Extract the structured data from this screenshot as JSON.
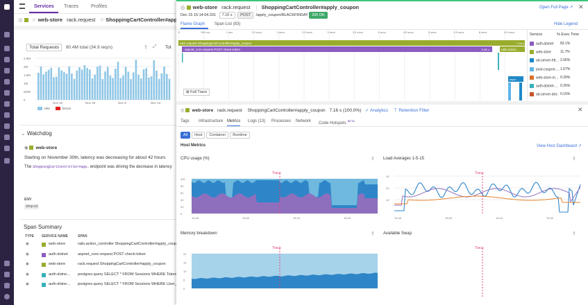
{
  "left_tabs": {
    "services": "Services",
    "traces": "Traces",
    "profiles": "Profiles"
  },
  "bg_header": {
    "service": "web-store",
    "op": "rack.request",
    "resource": "ShoppingCartController#apply_"
  },
  "bg_chart": {
    "title": "Total Requests",
    "value": "90.4M total (34.9 req/s)",
    "yticks": [
      "2.5M",
      "2M",
      "1.5M",
      "1M",
      "500K",
      "0"
    ],
    "xticks": [
      "Nov 22",
      "Nov 29",
      "Dec 6",
      "Dec 13"
    ],
    "legend": [
      "Hits",
      "Errors"
    ],
    "right_ylabels": [
      "20",
      "10",
      "0"
    ],
    "right_title": "Tot"
  },
  "watchdog": {
    "title": "Watchdog",
    "service": "web-store",
    "line1": "Starting on November 30th, latency was decreasing for about 42 hours",
    "line2_prefix": "The",
    "line2_code": "ShoppingCartController#app…",
    "line2_suffix": "endpoint was driving the decrease in latency",
    "env_label": "ENV",
    "env_value": "shop.ist"
  },
  "span_summary": {
    "title": "Span Summary",
    "headers": [
      "TYPE",
      "SERVICE NAME",
      "SPAN"
    ],
    "rows": [
      {
        "service": "web-store",
        "span": "rails.action_controller ShoppingCartController#apply_coupon",
        "color": "#9aac2e"
      },
      {
        "service": "auth-dotnet",
        "span": "aspnet_core.request POST check-token",
        "color": "#8b5cc2"
      },
      {
        "service": "web-store",
        "span": "rack.request ShoppingCartController#apply_coupon",
        "color": "#9aac2e"
      },
      {
        "service": "auth-dotne…",
        "span": "postgres.query SELECT * FROM Sessions WHERE Token =",
        "color": "#3ab0b8"
      },
      {
        "service": "auth-dotne…",
        "span": "postgres.query SELECT * FROM Sessions WHERE User_id",
        "color": "#3ab0b8"
      }
    ]
  },
  "trace": {
    "service": "web-store",
    "op": "rack.request",
    "resource": "ShoppingCartController#apply_coupon",
    "open_full": "Open Full Page",
    "date": "Dec 15 15:14:04.331",
    "duration": "7.16 s",
    "method": "POST",
    "path": "/apply_coupon/BLACKFRIDAY",
    "status": "200 OK"
  },
  "flame": {
    "tab1": "Flame Graph",
    "tab2": "Span List (83)",
    "hide_legend": "Hide Legend",
    "ruler": [
      "0",
      "500 ms",
      "1 sec",
      "1.5 secs",
      "2 secs",
      "2.5 secs",
      "3 secs",
      "3.5 secs",
      "4 secs",
      "4.5 secs",
      "5 secs",
      "5.5 secs",
      "6 secs",
      "6.5 secs"
    ],
    "bar1": "rack.request ShoppingCartController#apply_coupon",
    "bar1_dur": "7.16 s",
    "bar2": "aspnet_core.request POST check-token",
    "bar2_dur": "5.86 s",
    "bar3": "rails.action…",
    "bar3_dur": "1.16 s",
    "bar4": "aspn…",
    "full_trace": "Full Trace",
    "legend_header": [
      "Service",
      "% Exec Time"
    ],
    "legend": [
      {
        "name": "auth-dotnet",
        "pct": "83.1%",
        "color": "#8b5cc2"
      },
      {
        "name": "web-store",
        "pct": "11.7%",
        "color": "#9aac2e"
      },
      {
        "name": "ad-server-htt…",
        "pct": "2.06%",
        "color": "#1e88c7"
      },
      {
        "name": "post-coupon-…",
        "pct": "1.67%",
        "color": "#5fb5e8"
      },
      {
        "name": "web-store-m…",
        "pct": "0.39%",
        "color": "#d9702c"
      },
      {
        "name": "auth-dotnet-…",
        "pct": "0.26%",
        "color": "#3ab0b8"
      },
      {
        "name": "ad-server-dns",
        "pct": "0.15%",
        "color": "#c6542c"
      }
    ]
  },
  "detail": {
    "service": "web-store",
    "op": "rack.request",
    "resource": "ShoppingCartController#apply_coupon",
    "dur": "7.16 s (100.0%)",
    "analytics": "Analytics",
    "retention": "Retention Filter",
    "tabs": [
      "Tags",
      "Infrastructure",
      "Metrics",
      "Logs (13)",
      "Processes",
      "Network",
      "Code Hotspots"
    ],
    "beta": "BETA",
    "chips": [
      "All",
      "Host",
      "Container",
      "Runtime"
    ],
    "host_metrics": "Host Metrics",
    "view_dash": "View Host Dashboard"
  },
  "charts": {
    "cpu": {
      "title": "CPU usage (%)",
      "yticks": [
        "100",
        "80",
        "60",
        "40",
        "20",
        "0"
      ],
      "xticks": [
        "14:45",
        "15:00",
        "15:15",
        "15:30"
      ],
      "trace": "Trace"
    },
    "load": {
      "title": "Load Averages 1-5-15",
      "yticks": [
        "30",
        "20",
        "10"
      ],
      "xticks": [
        "14:45",
        "15:00",
        "15:15",
        "15:30"
      ],
      "trace": "Trace"
    },
    "mem": {
      "title": "Memory breakdown",
      "yticks": [
        "20",
        "15",
        "10",
        "5",
        "0"
      ],
      "trace": "Trace"
    },
    "swap": {
      "title": "Available Swap",
      "trace": "Trace"
    }
  }
}
